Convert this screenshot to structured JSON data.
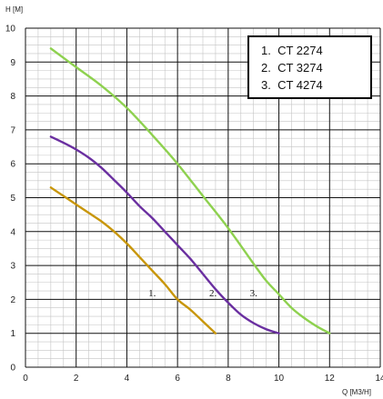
{
  "chart_data": {
    "type": "line",
    "title": "",
    "xlabel": "Q [M3/H]",
    "ylabel": "H [M]",
    "xlim": [
      0,
      14
    ],
    "ylim": [
      0,
      10
    ],
    "x_ticks": [
      "0",
      "2",
      "4",
      "6",
      "8",
      "10",
      "12",
      "14"
    ],
    "y_ticks": [
      "0",
      "1",
      "2",
      "3",
      "4",
      "5",
      "6",
      "7",
      "8",
      "9",
      "10"
    ],
    "grid": true,
    "legend_position": "top-right",
    "legend": [
      "1.  CT 2274",
      "2.  CT 3274",
      "3.  CT 4274"
    ],
    "series": [
      {
        "name": "CT 2274",
        "label": "1.",
        "color": "#c8960a",
        "x": [
          1.0,
          1.5,
          2.0,
          2.5,
          3.0,
          3.5,
          4.0,
          4.5,
          5.0,
          5.5,
          6.0,
          6.5,
          7.0,
          7.5
        ],
        "y": [
          5.3,
          5.05,
          4.8,
          4.55,
          4.3,
          4.0,
          3.65,
          3.25,
          2.85,
          2.45,
          2.0,
          1.7,
          1.35,
          1.0
        ],
        "label_at": [
          5.0,
          2.2
        ]
      },
      {
        "name": "CT 3274",
        "label": "2.",
        "color": "#6a2fa0",
        "x": [
          1.0,
          1.5,
          2.0,
          2.5,
          3.0,
          3.5,
          4.0,
          4.5,
          5.0,
          5.5,
          6.0,
          6.5,
          7.0,
          7.5,
          8.0,
          8.5,
          9.0,
          9.5,
          10.0
        ],
        "y": [
          6.8,
          6.62,
          6.42,
          6.18,
          5.88,
          5.52,
          5.15,
          4.75,
          4.4,
          4.0,
          3.6,
          3.2,
          2.75,
          2.3,
          1.9,
          1.55,
          1.3,
          1.12,
          1.0
        ],
        "label_at": [
          7.4,
          2.2
        ]
      },
      {
        "name": "CT 4274",
        "label": "3.",
        "color": "#8ed14f",
        "x": [
          1.0,
          2.0,
          3.0,
          4.0,
          5.0,
          6.0,
          7.0,
          8.0,
          9.0,
          9.5,
          10.0,
          10.5,
          11.0,
          11.5,
          12.0
        ],
        "y": [
          9.4,
          8.85,
          8.3,
          7.65,
          6.85,
          6.0,
          5.05,
          4.1,
          3.05,
          2.55,
          2.15,
          1.75,
          1.45,
          1.2,
          1.0
        ],
        "label_at": [
          9.0,
          2.2
        ]
      }
    ]
  }
}
